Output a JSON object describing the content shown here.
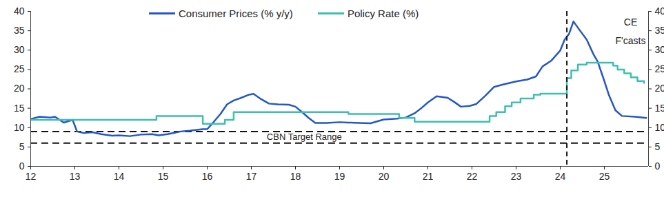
{
  "chart_data": {
    "type": "line",
    "series": [
      {
        "name": "Consumer Prices (% y/y)",
        "color": "#2457c5",
        "type": "line",
        "x": [
          2012.0,
          2012.2,
          2012.45,
          2012.55,
          2012.75,
          2012.95,
          2013.05,
          2013.2,
          2013.4,
          2013.6,
          2013.85,
          2014.0,
          2014.25,
          2014.5,
          2014.75,
          2014.9,
          2015.1,
          2015.4,
          2015.6,
          2015.9,
          2016.0,
          2016.15,
          2016.3,
          2016.45,
          2016.6,
          2016.75,
          2016.95,
          2017.05,
          2017.2,
          2017.4,
          2017.6,
          2017.85,
          2018.0,
          2018.15,
          2018.3,
          2018.45,
          2018.7,
          2019.0,
          2019.2,
          2019.45,
          2019.7,
          2019.85,
          2020.0,
          2020.3,
          2020.5,
          2020.7,
          2020.85,
          2021.0,
          2021.2,
          2021.45,
          2021.6,
          2021.75,
          2021.95,
          2022.1,
          2022.3,
          2022.5,
          2022.7,
          2022.85,
          2023.0,
          2023.25,
          2023.45,
          2023.6,
          2023.8,
          2024.0,
          2024.1,
          2024.2,
          2024.3,
          2024.45,
          2024.6,
          2024.75,
          2024.85,
          2025.0,
          2025.1,
          2025.25,
          2025.4,
          2025.7,
          2025.95
        ],
        "values": [
          12.2,
          12.8,
          12.6,
          12.8,
          11.3,
          12.0,
          9.0,
          8.6,
          8.8,
          8.3,
          7.9,
          8.0,
          7.8,
          8.2,
          8.3,
          8.0,
          8.3,
          9.0,
          9.2,
          9.6,
          9.6,
          11.5,
          13.5,
          16.0,
          17.0,
          17.6,
          18.5,
          18.7,
          17.5,
          16.2,
          16.0,
          15.9,
          15.4,
          14.0,
          12.5,
          11.2,
          11.2,
          11.4,
          11.3,
          11.2,
          11.1,
          11.6,
          12.1,
          12.3,
          12.6,
          13.7,
          15.0,
          16.5,
          18.1,
          17.7,
          16.6,
          15.4,
          15.6,
          16.1,
          18.2,
          20.5,
          21.1,
          21.5,
          21.9,
          22.4,
          23.2,
          25.8,
          27.3,
          29.9,
          32.7,
          34.2,
          37.4,
          35.0,
          32.7,
          29.0,
          27.0,
          22.0,
          18.5,
          14.5,
          13.0,
          12.8,
          12.5
        ]
      },
      {
        "name": "Policy Rate (%)",
        "color": "#3dbfb0",
        "type": "step",
        "x": [
          2012.0,
          2014.85,
          2015.9,
          2016.4,
          2016.6,
          2019.2,
          2020.35,
          2020.7,
          2022.4,
          2022.55,
          2022.75,
          2022.9,
          2023.1,
          2023.4,
          2023.55,
          2024.15,
          2024.25,
          2024.4,
          2024.6,
          2025.2,
          2025.3,
          2025.45,
          2025.6,
          2025.75,
          2025.9
        ],
        "values": [
          12,
          13,
          11,
          12,
          14,
          13.5,
          12.5,
          11.5,
          13,
          14,
          15.5,
          16.5,
          17.5,
          18.5,
          18.75,
          22.75,
          24.75,
          26.25,
          26.75,
          26,
          25,
          24,
          23,
          22,
          21.5
        ]
      }
    ],
    "xlim": [
      2012,
      2026
    ],
    "xticks": [
      {
        "value": 2012,
        "label": "12"
      },
      {
        "value": 2013,
        "label": "13"
      },
      {
        "value": 2014,
        "label": "14"
      },
      {
        "value": 2015,
        "label": "15"
      },
      {
        "value": 2016,
        "label": "16"
      },
      {
        "value": 2017,
        "label": "17"
      },
      {
        "value": 2018,
        "label": "18"
      },
      {
        "value": 2019,
        "label": "19"
      },
      {
        "value": 2020,
        "label": "20"
      },
      {
        "value": 2021,
        "label": "21"
      },
      {
        "value": 2022,
        "label": "22"
      },
      {
        "value": 2023,
        "label": "23"
      },
      {
        "value": 2024,
        "label": "24"
      },
      {
        "value": 2025,
        "label": "25"
      }
    ],
    "ylim": [
      0,
      40
    ],
    "yticks": [
      0,
      5,
      10,
      15,
      20,
      25,
      30,
      35,
      40
    ],
    "y2lim": [
      0,
      40
    ],
    "y2ticks": [
      0,
      5,
      10,
      15,
      20,
      25,
      30,
      35,
      40
    ],
    "legend": "top",
    "grid": false,
    "target_range": {
      "label": "CBN Target Range",
      "low": 6,
      "high": 9,
      "label_x": 2018.2,
      "label_y": 7.5
    },
    "forecast": {
      "label": "CE\nF'casts",
      "start": 2024.15
    }
  }
}
